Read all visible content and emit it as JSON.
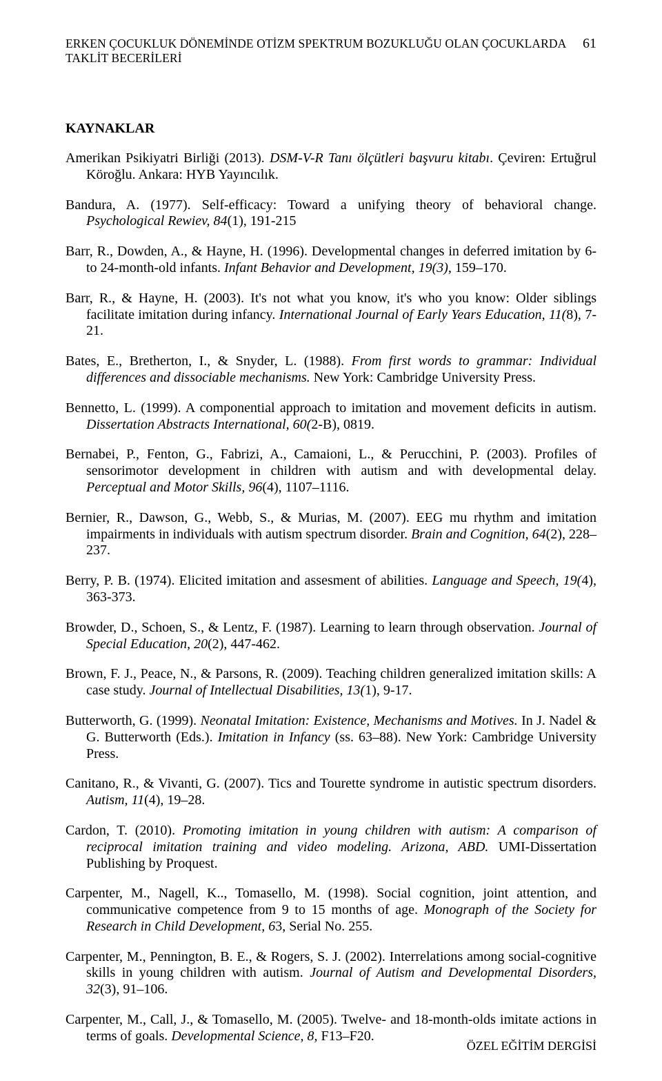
{
  "header": {
    "runningTitle": "ERKEN ÇOCUKLUK DÖNEMİNDE OTİZM SPEKTRUM BOZUKLUĞU OLAN ÇOCUKLARDA TAKLİT BECERİLERİ",
    "pageNumber": "61"
  },
  "heading": "KAYNAKLAR",
  "refs": [
    {
      "pre": "Amerikan Psikiyatri Birliği (2013). ",
      "ital": "DSM-V-R Tanı ölçütleri başvuru kitabı",
      "post": ". Çeviren: Ertuğrul Köroğlu. Ankara: HYB Yayıncılık."
    },
    {
      "pre": "Bandura, A. (1977). Self-efficacy: Toward a unifying theory of behavioral change. ",
      "ital": "Psychological Rewiev, 84",
      "post": "(1), 191-215"
    },
    {
      "pre": "Barr, R., Dowden, A., & Hayne, H. (1996). Developmental changes in deferred imitation by 6- to 24-month-old infants. ",
      "ital": "Infant Behavior and Development, 19(3),",
      "post": " 159–170."
    },
    {
      "pre": "Barr, R., & Hayne, H. (2003). It's not what you know, it's who you know: Older siblings facilitate imitation during infancy. ",
      "ital": "International Journal of Early Years Education, 11(",
      "post": "8), 7-21."
    },
    {
      "pre": "Bates, E., Bretherton, I., & Snyder, L. (1988). ",
      "ital": "From first words to grammar: Individual differences and dissociable mechanisms.",
      "post": " New York: Cambridge University Press."
    },
    {
      "pre": "Bennetto, L. (1999). A componential approach to imitation and movement deficits in autism. ",
      "ital": "Dissertation Abstracts International, 60(",
      "post": "2-B), 0819."
    },
    {
      "pre": "Bernabei, P., Fenton, G., Fabrizi, A., Camaioni, L., & Perucchini, P. (2003). Profiles of sensorimotor development in children with autism and with developmental delay. ",
      "ital": "Perceptual and Motor Skills, 96",
      "post": "(4), 1107–1116."
    },
    {
      "pre": "Bernier, R., Dawson, G., Webb, S., & Murias, M. (2007). EEG mu rhythm and imitation impairments in individuals with autism spectrum disorder. ",
      "ital": "Brain and Cognition, 64",
      "post": "(2), 228–237."
    },
    {
      "pre": "Berry, P. B. (1974). Elicited imitation and assesment of abilities. ",
      "ital": "Language and Speech, 19(",
      "post": "4), 363-373."
    },
    {
      "pre": "Browder, D., Schoen, S., & Lentz, F. (1987). Learning to learn through observation. ",
      "ital": "Journal of Special Education, 20",
      "post": "(2), 447-462."
    },
    {
      "pre": "Brown, F. J., Peace, N., & Parsons, R. (2009). Teaching children generalized imitation skills: A case study. ",
      "ital": "Journal of Intellectual Disabilities, 13(",
      "post": "1), 9-17."
    },
    {
      "pre": "Butterworth, G. (1999). ",
      "ital": "Neonatal Imitation: Existence, Mechanisms and Motives.",
      "post": " In J. Nadel & G. Butterworth (Eds.). ",
      "ital2": "Imitation in Infancy",
      "post2": " (ss. 63–88). New York: Cambridge University Press."
    },
    {
      "pre": "Canitano, R., & Vivanti, G. (2007). Tics and Tourette syndrome in autistic spectrum disorders. ",
      "ital": "Autism, 11",
      "post": "(4), 19–28."
    },
    {
      "pre": "Cardon, T. (2010). ",
      "ital": "Promoting imitation in young children with autism: A comparison of reciprocal imitation training and video modeling. Arizona, ABD.",
      "post": " UMI-Dissertation Publishing by Proquest."
    },
    {
      "pre": "Carpenter, M., Nagell, K.., Tomasello, M. (1998). Social cognition, joint attention, and communicative competence from 9 to 15 months of age. ",
      "ital": "Monograph of the Society for Research in Child Development, 6",
      "post": "3, Serial No. 255."
    },
    {
      "pre": "Carpenter, M., Pennington, B. E., & Rogers, S. J. (2002). Interrelations among social-cognitive skills in young children with autism. ",
      "ital": "Journal of Autism and Developmental Disorders, 32",
      "post": "(3), 91–106."
    },
    {
      "pre": "Carpenter, M., Call, J., & Tomasello, M. (2005). Twelve- and 18-month-olds imitate actions in terms of goals. ",
      "ital": "Developmental Science, 8,",
      "post": " F13–F20."
    }
  ],
  "footer": "ÖZEL EĞİTİM DERGİSİ"
}
